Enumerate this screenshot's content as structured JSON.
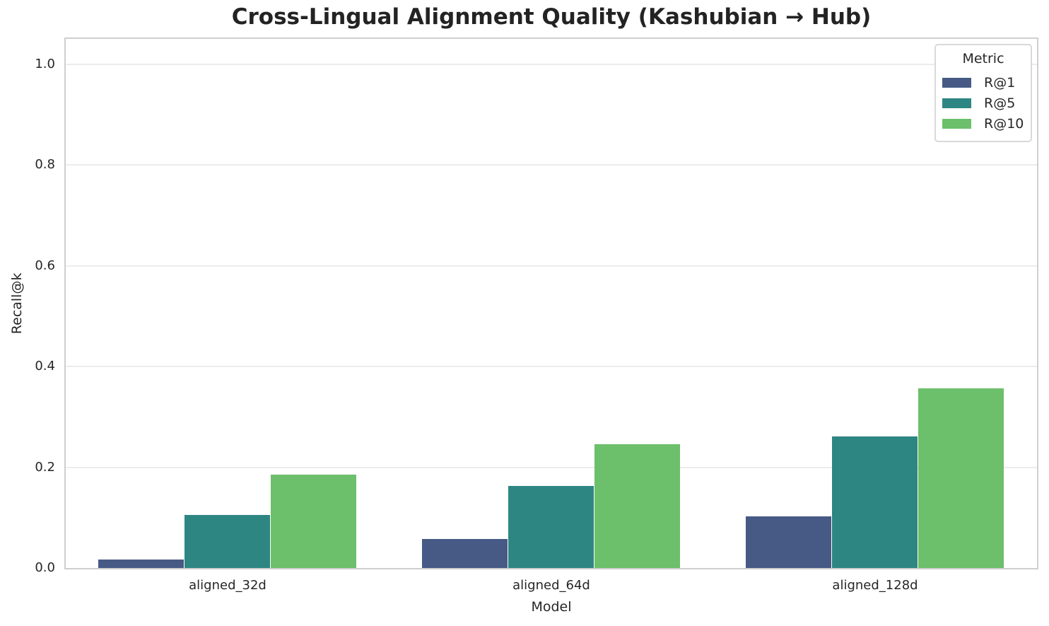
{
  "chart_data": {
    "type": "bar",
    "title": "Cross-Lingual Alignment Quality (Kashubian → Hub)",
    "xlabel": "Model",
    "ylabel": "Recall@k",
    "categories": [
      "aligned_32d",
      "aligned_64d",
      "aligned_128d"
    ],
    "series": [
      {
        "name": "R@1",
        "color": "#475a85",
        "values": [
          0.017,
          0.057,
          0.102
        ]
      },
      {
        "name": "R@5",
        "color": "#2e8682",
        "values": [
          0.106,
          0.163,
          0.261
        ]
      },
      {
        "name": "R@10",
        "color": "#6cbf6b",
        "values": [
          0.186,
          0.245,
          0.356
        ]
      }
    ],
    "ylim": [
      0,
      1.05
    ],
    "yticks": [
      0.0,
      0.2,
      0.4,
      0.6,
      0.8,
      1.0
    ],
    "ytick_labels": [
      "0.0",
      "0.2",
      "0.4",
      "0.6",
      "0.8",
      "1.0"
    ],
    "grid": "horizontal",
    "legend": {
      "title": "Metric",
      "position": "upper right"
    }
  }
}
